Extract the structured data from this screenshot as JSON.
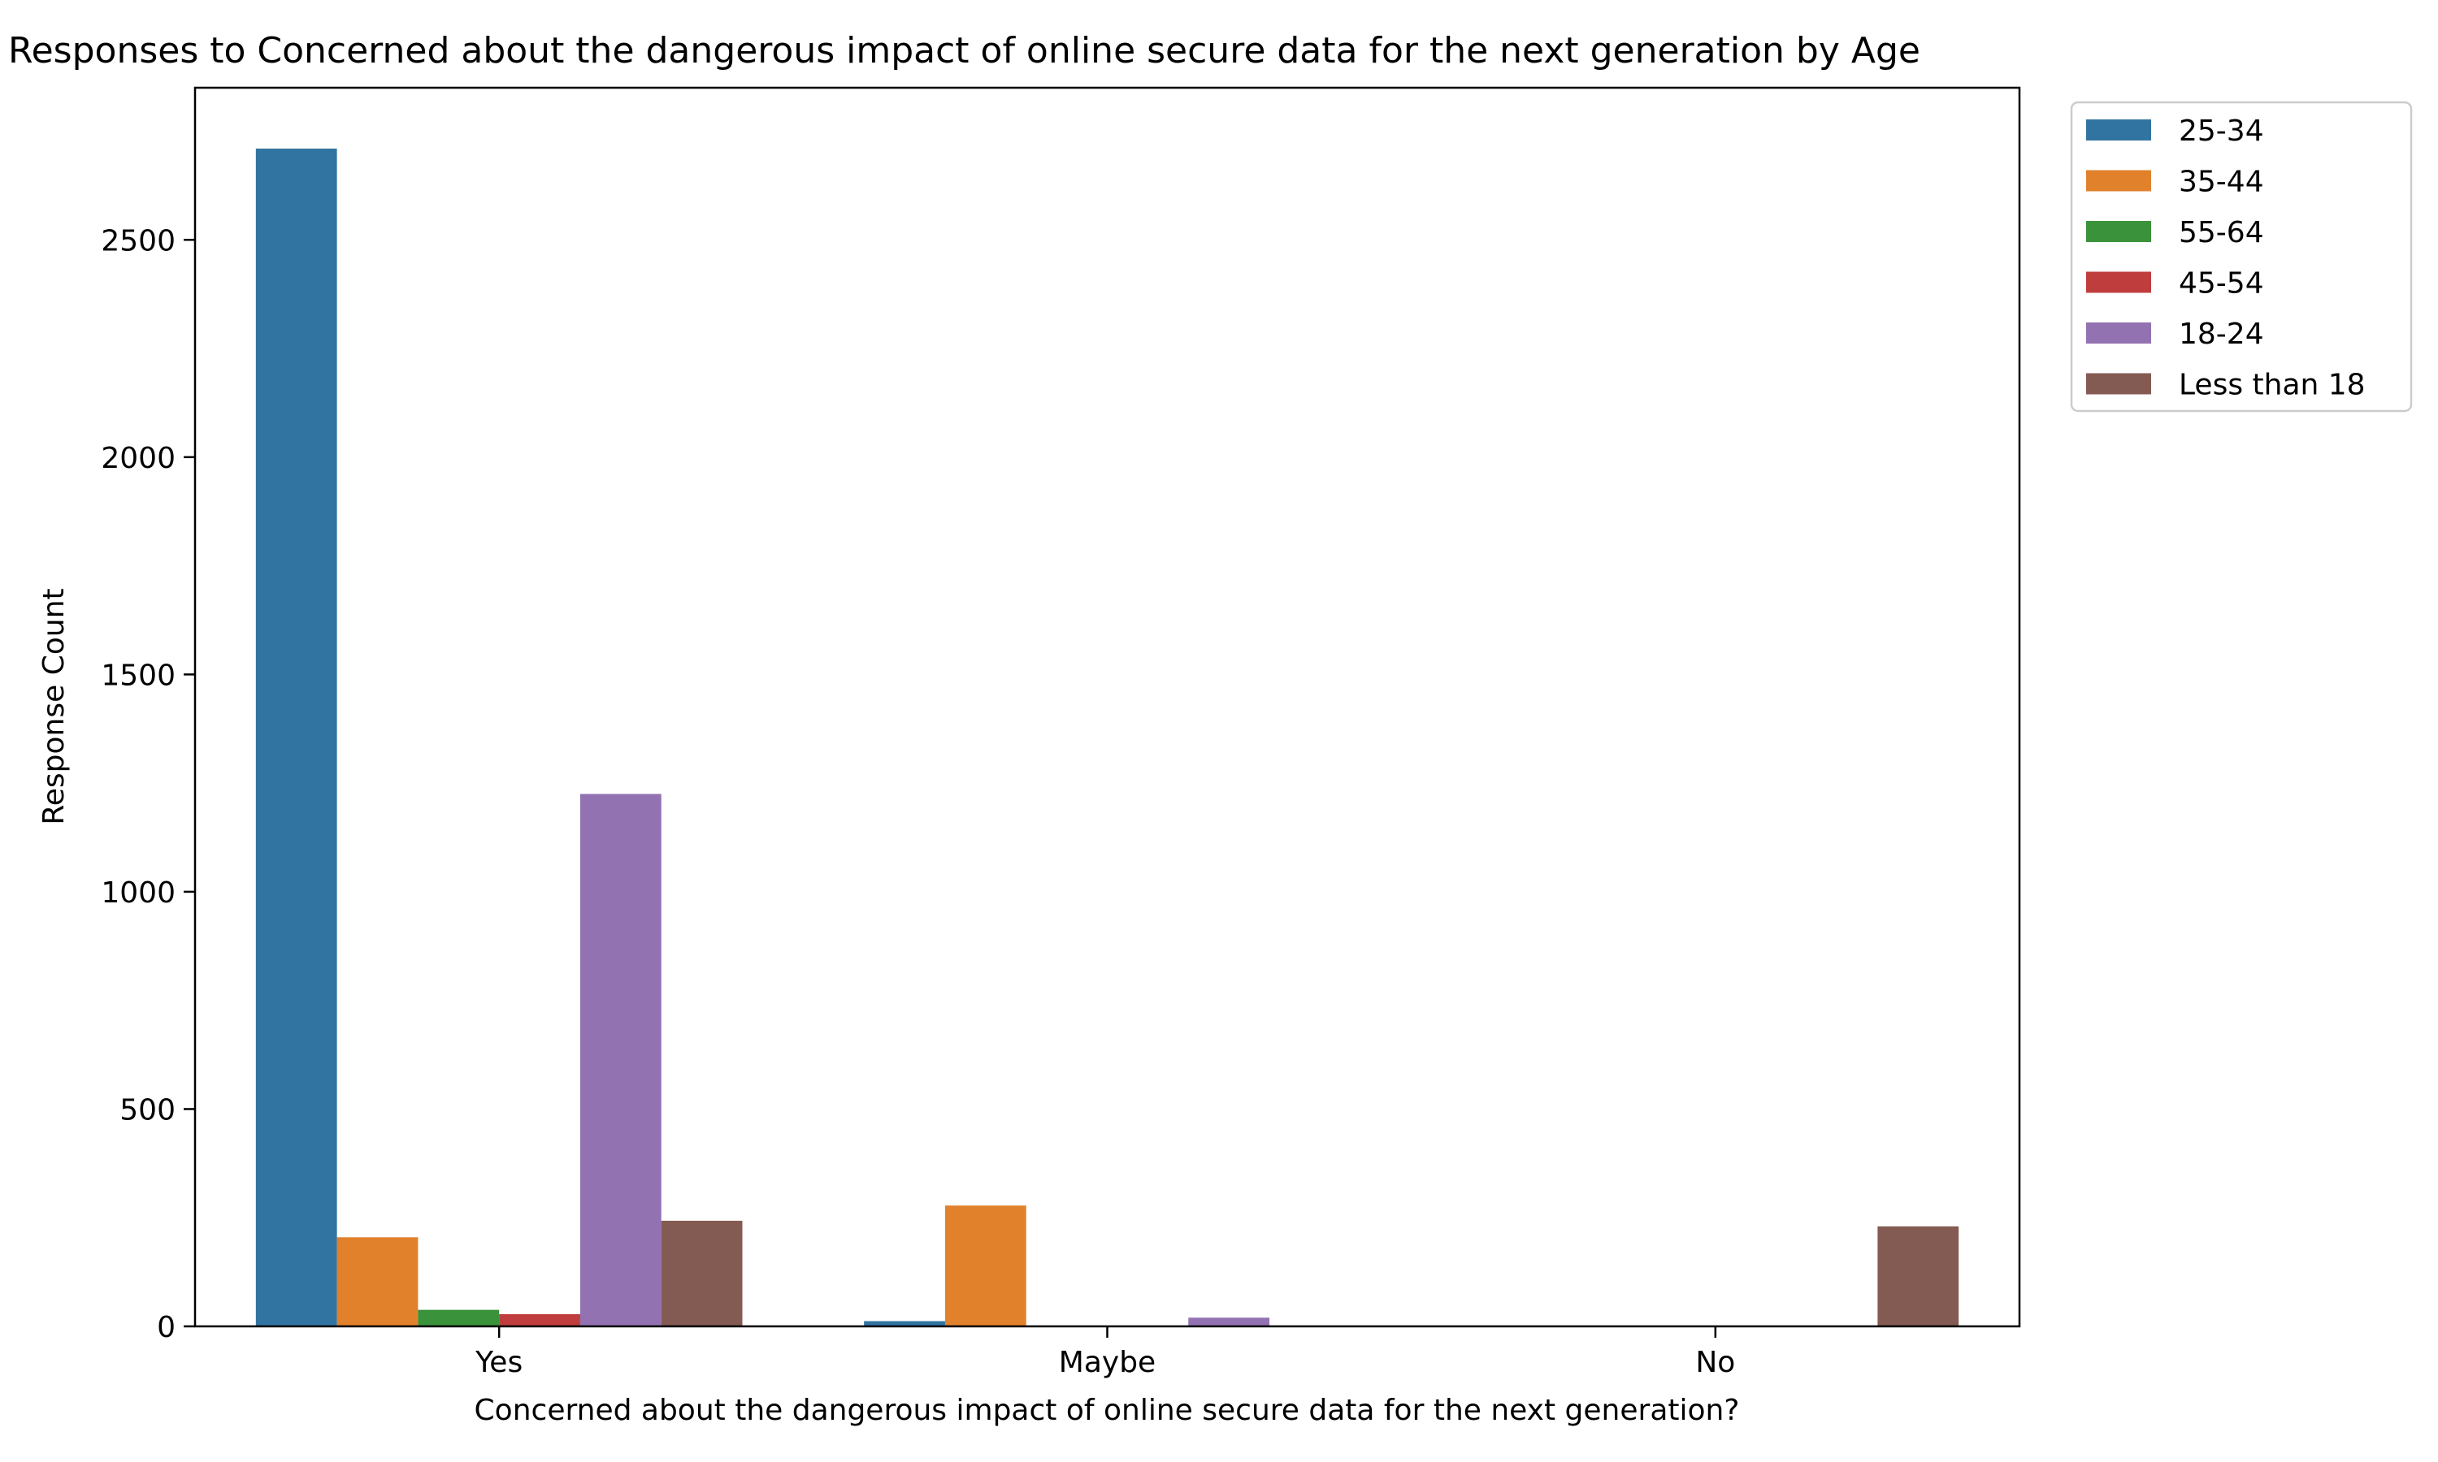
{
  "chart_data": {
    "type": "bar",
    "title": "Responses to Concerned about the dangerous impact of online secure data for the next generation by Age",
    "xlabel": "Concerned about the dangerous impact of online secure data for the next generation?",
    "ylabel": "Response Count",
    "categories": [
      "Yes",
      "Maybe",
      "No"
    ],
    "ylim": [
      0,
      2850
    ],
    "yticks": [
      0,
      500,
      1000,
      1500,
      2000,
      2500
    ],
    "legend_position": "outside-top-right",
    "grid": false,
    "series": [
      {
        "name": "25-34",
        "color": "#3274a1",
        "values": [
          2710,
          12,
          0
        ]
      },
      {
        "name": "35-44",
        "color": "#e1812c",
        "values": [
          205,
          278,
          0
        ]
      },
      {
        "name": "55-64",
        "color": "#3a923a",
        "values": [
          38,
          0,
          0
        ]
      },
      {
        "name": "45-54",
        "color": "#c03d3e",
        "values": [
          28,
          0,
          0
        ]
      },
      {
        "name": "18-24",
        "color": "#9372b2",
        "values": [
          1225,
          20,
          0
        ]
      },
      {
        "name": "Less than 18",
        "color": "#845b53",
        "values": [
          243,
          0,
          230
        ]
      }
    ]
  }
}
